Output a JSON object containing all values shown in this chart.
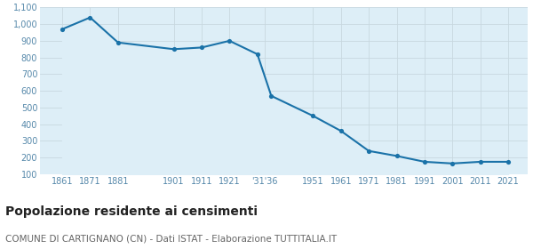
{
  "years": [
    1861,
    1871,
    1881,
    1901,
    1911,
    1921,
    1931,
    1936,
    1951,
    1961,
    1971,
    1981,
    1991,
    2001,
    2011,
    2021
  ],
  "values": [
    970,
    1040,
    890,
    850,
    860,
    900,
    820,
    570,
    450,
    360,
    240,
    210,
    175,
    165,
    175,
    175
  ],
  "yticks": [
    100,
    200,
    300,
    400,
    500,
    600,
    700,
    800,
    900,
    1000,
    1100
  ],
  "ylim": [
    100,
    1100
  ],
  "xlim": [
    1853,
    2028
  ],
  "line_color": "#1a72a8",
  "fill_color": "#ddeef7",
  "marker_color": "#1a72a8",
  "bg_color": "#ffffff",
  "grid_color": "#c8d8e0",
  "title": "Popolazione residente ai censimenti",
  "subtitle": "COMUNE DI CARTIGNANO (CN) - Dati ISTAT - Elaborazione TUTTITALIA.IT",
  "title_fontsize": 10,
  "subtitle_fontsize": 7.5,
  "tick_fontsize": 7,
  "tick_color": "#5588aa"
}
